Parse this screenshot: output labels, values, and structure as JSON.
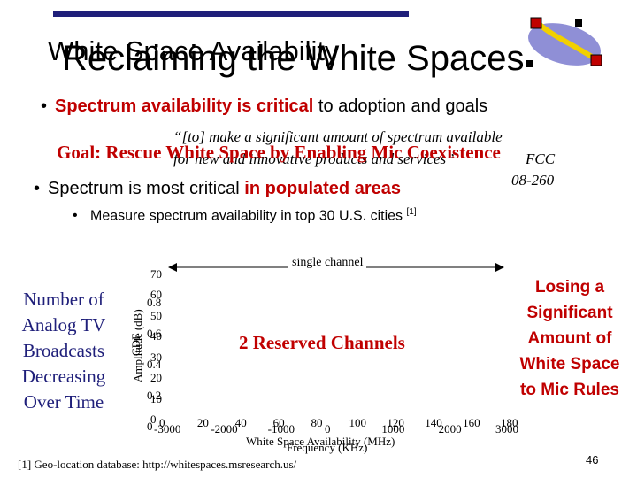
{
  "slide": {
    "title_old": "White Space Availability",
    "title": "Reclaiming the White Spaces",
    "bullet1": {
      "highlight": "Spectrum availability is critical",
      "rest": " to adoption and goals"
    },
    "quote_line1": "“[to] make a significant amount of spectrum available",
    "quote_line2": "for new and innovative products and services”",
    "quote_source1": "FCC",
    "quote_source2": "08-260",
    "goal": "Goal:  Rescue White Space by Enabling Mic Coexistence",
    "bullet2": {
      "text": "Spectrum is most critical ",
      "highlight": "in populated areas"
    },
    "sub_bullet": "Measure spectrum availability in top 30 U.S. cities",
    "sub_bullet_ref": "[1]",
    "single_channel": "single channel",
    "reserved_channels": "2 Reserved Channels",
    "left_note_lines": [
      "Number of",
      "Analog TV",
      "Broadcasts",
      "Decreasing",
      "Over Time"
    ],
    "right_note_lines": [
      "Losing a",
      "Significant",
      "Amount of",
      "White Space",
      "to Mic Rules"
    ],
    "footnote": "[1] Geo-location database: http://whitespaces.msresearch.us/",
    "page_number": "46"
  },
  "chart_data": {
    "type": "line",
    "title": "",
    "xlabel_1": "White Space Availability (MHz)",
    "xlabel_2": "Frequency (KHz)",
    "ylabel_1": "CDF",
    "ylabel_2": "Amplitude (dB)",
    "y_ticks_a": [
      "70",
      "60",
      "50",
      "40",
      "30",
      "20",
      "10",
      "0"
    ],
    "y_ticks_b": [
      "0.8",
      "0.6",
      "0.4",
      "0.2",
      "0"
    ],
    "x_ticks_a": [
      "0",
      "20",
      "40",
      "60",
      "80",
      "100",
      "120",
      "140",
      "160",
      "180"
    ],
    "x_ticks_b": [
      "-3000",
      "-2000",
      "-1000",
      "0",
      "1000",
      "2000",
      "3000"
    ]
  },
  "colors": {
    "accent": "#c00000",
    "navy": "#1f1f7a"
  }
}
